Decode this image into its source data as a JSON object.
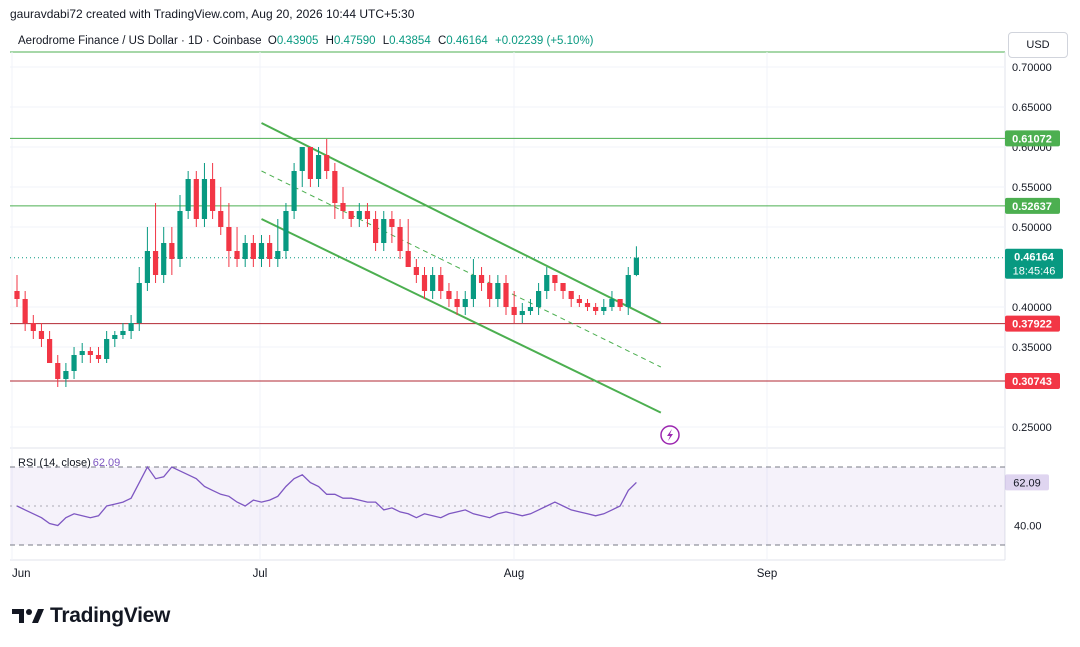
{
  "header": {
    "credit": "gauravdabi72 created with TradingView.com, Aug 20, 2026 10:44 UTC+5:30"
  },
  "legend": {
    "symbol": "Aerodrome Finance / US Dollar · 1D · Coinbase",
    "o_label": "O",
    "o_value": "0.43905",
    "h_label": "H",
    "h_value": "0.47590",
    "l_label": "L",
    "l_value": "0.43854",
    "c_label": "C",
    "c_value": "0.46164",
    "change": "+0.02239 (+5.10%)"
  },
  "currency": "USD",
  "rsi": {
    "label": "RSI (14, close)",
    "value": "62.09",
    "tick": "40.00"
  },
  "brand": {
    "name": "TradingView"
  },
  "colors": {
    "up": "#089981",
    "down": "#f23645",
    "green_line": "#4caf50",
    "red_line": "#b22833",
    "rsi": "#7e57c2"
  },
  "icons": [
    "lightning-icon",
    "tradingview-logo-icon"
  ],
  "chart_data": [
    {
      "type": "candlestick",
      "title": "Aerodrome Finance / US Dollar · 1D · Coinbase",
      "y_axis_ticks": [
        "0.70000",
        "0.65000",
        "0.60000",
        "0.55000",
        "0.50000",
        "0.40000",
        "0.35000",
        "0.25000"
      ],
      "x_axis_ticks": [
        "Jun",
        "Jul",
        "Aug",
        "Sep"
      ],
      "ylim": [
        0.22,
        0.72
      ],
      "last_price": "0.46164",
      "countdown": "18:45:46",
      "price_levels": [
        {
          "label": "0.61072",
          "value": 0.61072,
          "color": "#4caf50"
        },
        {
          "label": "0.52637",
          "value": 0.52637,
          "color": "#4caf50"
        },
        {
          "label": "0.37922",
          "value": 0.37922,
          "color": "#f23645"
        },
        {
          "label": "0.30743",
          "value": 0.30743,
          "color": "#f23645"
        }
      ],
      "channel": {
        "upper": {
          "from": {
            "day": 30,
            "price": 0.63
          },
          "to": {
            "day": 79,
            "price": 0.38
          }
        },
        "middle": {
          "from": {
            "day": 30,
            "price": 0.57
          },
          "to": {
            "day": 79,
            "price": 0.325
          }
        },
        "lower": {
          "from": {
            "day": 30,
            "price": 0.51
          },
          "to": {
            "day": 79,
            "price": 0.268
          }
        }
      },
      "candles": [
        [
          0.42,
          0.41,
          0.44,
          0.4
        ],
        [
          0.41,
          0.38,
          0.42,
          0.37
        ],
        [
          0.38,
          0.37,
          0.39,
          0.36
        ],
        [
          0.37,
          0.36,
          0.38,
          0.35
        ],
        [
          0.36,
          0.33,
          0.37,
          0.33
        ],
        [
          0.33,
          0.31,
          0.34,
          0.3
        ],
        [
          0.31,
          0.32,
          0.33,
          0.3
        ],
        [
          0.32,
          0.34,
          0.35,
          0.31
        ],
        [
          0.34,
          0.345,
          0.355,
          0.33
        ],
        [
          0.345,
          0.34,
          0.35,
          0.33
        ],
        [
          0.34,
          0.335,
          0.35,
          0.33
        ],
        [
          0.335,
          0.36,
          0.37,
          0.33
        ],
        [
          0.36,
          0.365,
          0.37,
          0.35
        ],
        [
          0.365,
          0.37,
          0.38,
          0.36
        ],
        [
          0.37,
          0.38,
          0.39,
          0.36
        ],
        [
          0.38,
          0.43,
          0.45,
          0.37
        ],
        [
          0.43,
          0.47,
          0.5,
          0.42
        ],
        [
          0.47,
          0.44,
          0.53,
          0.43
        ],
        [
          0.44,
          0.48,
          0.5,
          0.43
        ],
        [
          0.48,
          0.46,
          0.5,
          0.44
        ],
        [
          0.46,
          0.52,
          0.54,
          0.45
        ],
        [
          0.52,
          0.56,
          0.57,
          0.51
        ],
        [
          0.56,
          0.51,
          0.57,
          0.5
        ],
        [
          0.51,
          0.56,
          0.58,
          0.5
        ],
        [
          0.56,
          0.52,
          0.58,
          0.51
        ],
        [
          0.52,
          0.5,
          0.55,
          0.49
        ],
        [
          0.5,
          0.47,
          0.53,
          0.45
        ],
        [
          0.47,
          0.46,
          0.5,
          0.45
        ],
        [
          0.46,
          0.48,
          0.49,
          0.45
        ],
        [
          0.48,
          0.46,
          0.49,
          0.45
        ],
        [
          0.46,
          0.48,
          0.49,
          0.45
        ],
        [
          0.48,
          0.46,
          0.49,
          0.45
        ],
        [
          0.46,
          0.47,
          0.51,
          0.45
        ],
        [
          0.47,
          0.52,
          0.53,
          0.46
        ],
        [
          0.52,
          0.57,
          0.58,
          0.51
        ],
        [
          0.57,
          0.6,
          0.6,
          0.55
        ],
        [
          0.6,
          0.56,
          0.6,
          0.55
        ],
        [
          0.56,
          0.59,
          0.6,
          0.55
        ],
        [
          0.59,
          0.57,
          0.61,
          0.56
        ],
        [
          0.57,
          0.53,
          0.58,
          0.51
        ],
        [
          0.53,
          0.52,
          0.55,
          0.51
        ],
        [
          0.52,
          0.51,
          0.52,
          0.5
        ],
        [
          0.51,
          0.52,
          0.53,
          0.5
        ],
        [
          0.52,
          0.51,
          0.53,
          0.5
        ],
        [
          0.51,
          0.48,
          0.52,
          0.47
        ],
        [
          0.48,
          0.51,
          0.52,
          0.47
        ],
        [
          0.51,
          0.5,
          0.52,
          0.48
        ],
        [
          0.5,
          0.47,
          0.51,
          0.46
        ],
        [
          0.47,
          0.45,
          0.51,
          0.45
        ],
        [
          0.45,
          0.44,
          0.46,
          0.43
        ],
        [
          0.44,
          0.42,
          0.45,
          0.41
        ],
        [
          0.42,
          0.44,
          0.45,
          0.41
        ],
        [
          0.44,
          0.42,
          0.45,
          0.41
        ],
        [
          0.42,
          0.41,
          0.43,
          0.4
        ],
        [
          0.41,
          0.4,
          0.42,
          0.39
        ],
        [
          0.4,
          0.41,
          0.42,
          0.39
        ],
        [
          0.41,
          0.44,
          0.46,
          0.4
        ],
        [
          0.44,
          0.43,
          0.45,
          0.42
        ],
        [
          0.43,
          0.41,
          0.44,
          0.4
        ],
        [
          0.41,
          0.43,
          0.44,
          0.4
        ],
        [
          0.43,
          0.4,
          0.44,
          0.39
        ],
        [
          0.4,
          0.39,
          0.42,
          0.38
        ],
        [
          0.39,
          0.395,
          0.405,
          0.38
        ],
        [
          0.395,
          0.4,
          0.41,
          0.39
        ],
        [
          0.4,
          0.42,
          0.43,
          0.39
        ],
        [
          0.42,
          0.44,
          0.45,
          0.41
        ],
        [
          0.44,
          0.43,
          0.44,
          0.42
        ],
        [
          0.43,
          0.42,
          0.43,
          0.41
        ],
        [
          0.42,
          0.41,
          0.42,
          0.4
        ],
        [
          0.41,
          0.405,
          0.415,
          0.4
        ],
        [
          0.405,
          0.4,
          0.41,
          0.395
        ],
        [
          0.4,
          0.395,
          0.405,
          0.39
        ],
        [
          0.395,
          0.4,
          0.41,
          0.39
        ],
        [
          0.4,
          0.41,
          0.42,
          0.395
        ],
        [
          0.41,
          0.4,
          0.41,
          0.395
        ],
        [
          0.4,
          0.44,
          0.45,
          0.39
        ],
        [
          0.44,
          0.46164,
          0.4759,
          0.43854
        ]
      ]
    },
    {
      "type": "line",
      "title": "RSI (14, close)",
      "y_axis_ticks": [
        "40.00"
      ],
      "ylim": [
        20,
        80
      ],
      "bands": [
        30,
        70
      ],
      "last_value": "62.09",
      "values": [
        50,
        48,
        46,
        44,
        41,
        40,
        44,
        46,
        45,
        44,
        45,
        50,
        51,
        52,
        54,
        62,
        70,
        64,
        65,
        70,
        68,
        66,
        64,
        60,
        58,
        56,
        55,
        52,
        50,
        53,
        52,
        53,
        55,
        60,
        64,
        66,
        62,
        60,
        56,
        56,
        54,
        54,
        53,
        52,
        52,
        48,
        49,
        47,
        46,
        44,
        46,
        45,
        44,
        46,
        47,
        48,
        46,
        45,
        44,
        46,
        47,
        46,
        45,
        46,
        48,
        50,
        52,
        50,
        48,
        47,
        46,
        45,
        46,
        48,
        50,
        58,
        62.09
      ]
    }
  ]
}
